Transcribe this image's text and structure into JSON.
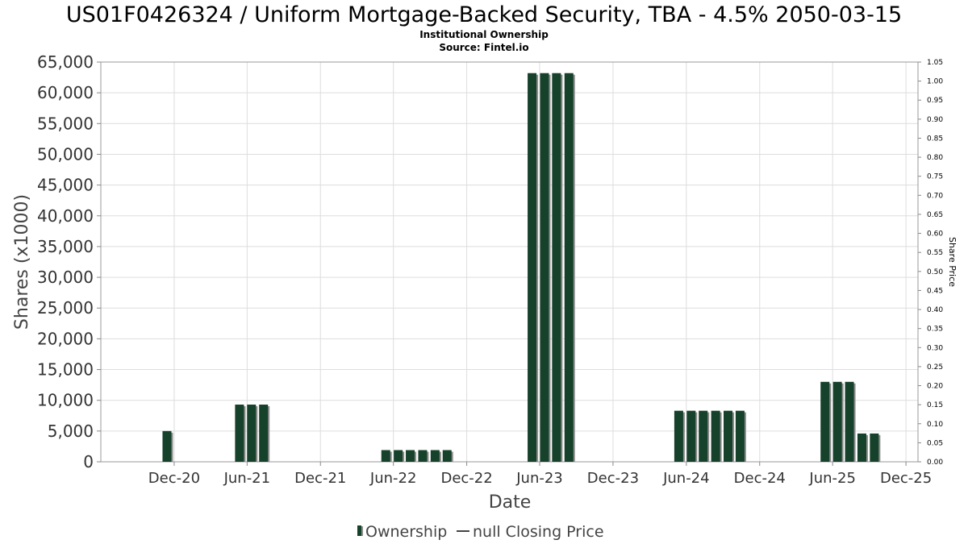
{
  "chart_data": {
    "type": "bar",
    "title": "US01F0426324 / Uniform Mortgage-Backed Security, TBA - 4.5% 2050-03-15",
    "subtitle": "Institutional Ownership",
    "source": "Source: Fintel.io",
    "xlabel": "Date",
    "ylabel": "Shares (x1000)",
    "ylabel_right": "Share Price",
    "ylim": [
      0,
      65000
    ],
    "ylim_right": [
      0,
      1.05
    ],
    "yticks": [
      "0",
      "5,000",
      "10,000",
      "15,000",
      "20,000",
      "25,000",
      "30,000",
      "35,000",
      "40,000",
      "45,000",
      "50,000",
      "55,000",
      "60,000",
      "65,000"
    ],
    "yticks_right": [
      "0.00",
      "0.05",
      "0.10",
      "0.15",
      "0.20",
      "0.25",
      "0.30",
      "0.35",
      "0.40",
      "0.45",
      "0.50",
      "0.55",
      "0.60",
      "0.65",
      "0.70",
      "0.75",
      "0.80",
      "0.85",
      "0.90",
      "0.95",
      "1.00",
      "1.05"
    ],
    "xlim": [
      "2020-06-01",
      "2025-12-31"
    ],
    "xticks": [
      {
        "date": "2020-12-01",
        "label": "Dec-20"
      },
      {
        "date": "2021-06-01",
        "label": "Jun-21"
      },
      {
        "date": "2021-12-01",
        "label": "Dec-21"
      },
      {
        "date": "2022-06-01",
        "label": "Jun-22"
      },
      {
        "date": "2022-12-01",
        "label": "Dec-22"
      },
      {
        "date": "2023-06-01",
        "label": "Jun-23"
      },
      {
        "date": "2023-12-01",
        "label": "Dec-23"
      },
      {
        "date": "2024-06-01",
        "label": "Jun-24"
      },
      {
        "date": "2024-12-01",
        "label": "Dec-24"
      },
      {
        "date": "2025-06-01",
        "label": "Jun-25"
      },
      {
        "date": "2025-12-01",
        "label": "Dec-25"
      }
    ],
    "grid": true,
    "legend_position": "bottom",
    "series": [
      {
        "name": "Ownership",
        "color": "#16412a",
        "shadow_color": "#8c8c8c",
        "points": [
          {
            "date": "2020-11-13",
            "value": 5000
          },
          {
            "date": "2021-05-13",
            "value": 9300
          },
          {
            "date": "2021-06-12",
            "value": 9300
          },
          {
            "date": "2021-07-12",
            "value": 9300
          },
          {
            "date": "2022-05-13",
            "value": 1900
          },
          {
            "date": "2022-06-13",
            "value": 1900
          },
          {
            "date": "2022-07-13",
            "value": 1900
          },
          {
            "date": "2022-08-13",
            "value": 1900
          },
          {
            "date": "2022-09-13",
            "value": 1900
          },
          {
            "date": "2022-10-13",
            "value": 1900
          },
          {
            "date": "2023-05-13",
            "value": 63200
          },
          {
            "date": "2023-06-13",
            "value": 63200
          },
          {
            "date": "2023-07-13",
            "value": 63200
          },
          {
            "date": "2023-08-13",
            "value": 63200
          },
          {
            "date": "2024-05-13",
            "value": 8300
          },
          {
            "date": "2024-06-13",
            "value": 8300
          },
          {
            "date": "2024-07-13",
            "value": 8300
          },
          {
            "date": "2024-08-13",
            "value": 8300
          },
          {
            "date": "2024-09-13",
            "value": 8300
          },
          {
            "date": "2024-10-13",
            "value": 8300
          },
          {
            "date": "2025-05-13",
            "value": 13000
          },
          {
            "date": "2025-06-13",
            "value": 13000
          },
          {
            "date": "2025-07-13",
            "value": 13000
          },
          {
            "date": "2025-08-13",
            "value": 4600
          },
          {
            "date": "2025-09-13",
            "value": 4600
          }
        ]
      },
      {
        "name": "null Closing Price",
        "color": "#444444",
        "points": []
      }
    ]
  }
}
